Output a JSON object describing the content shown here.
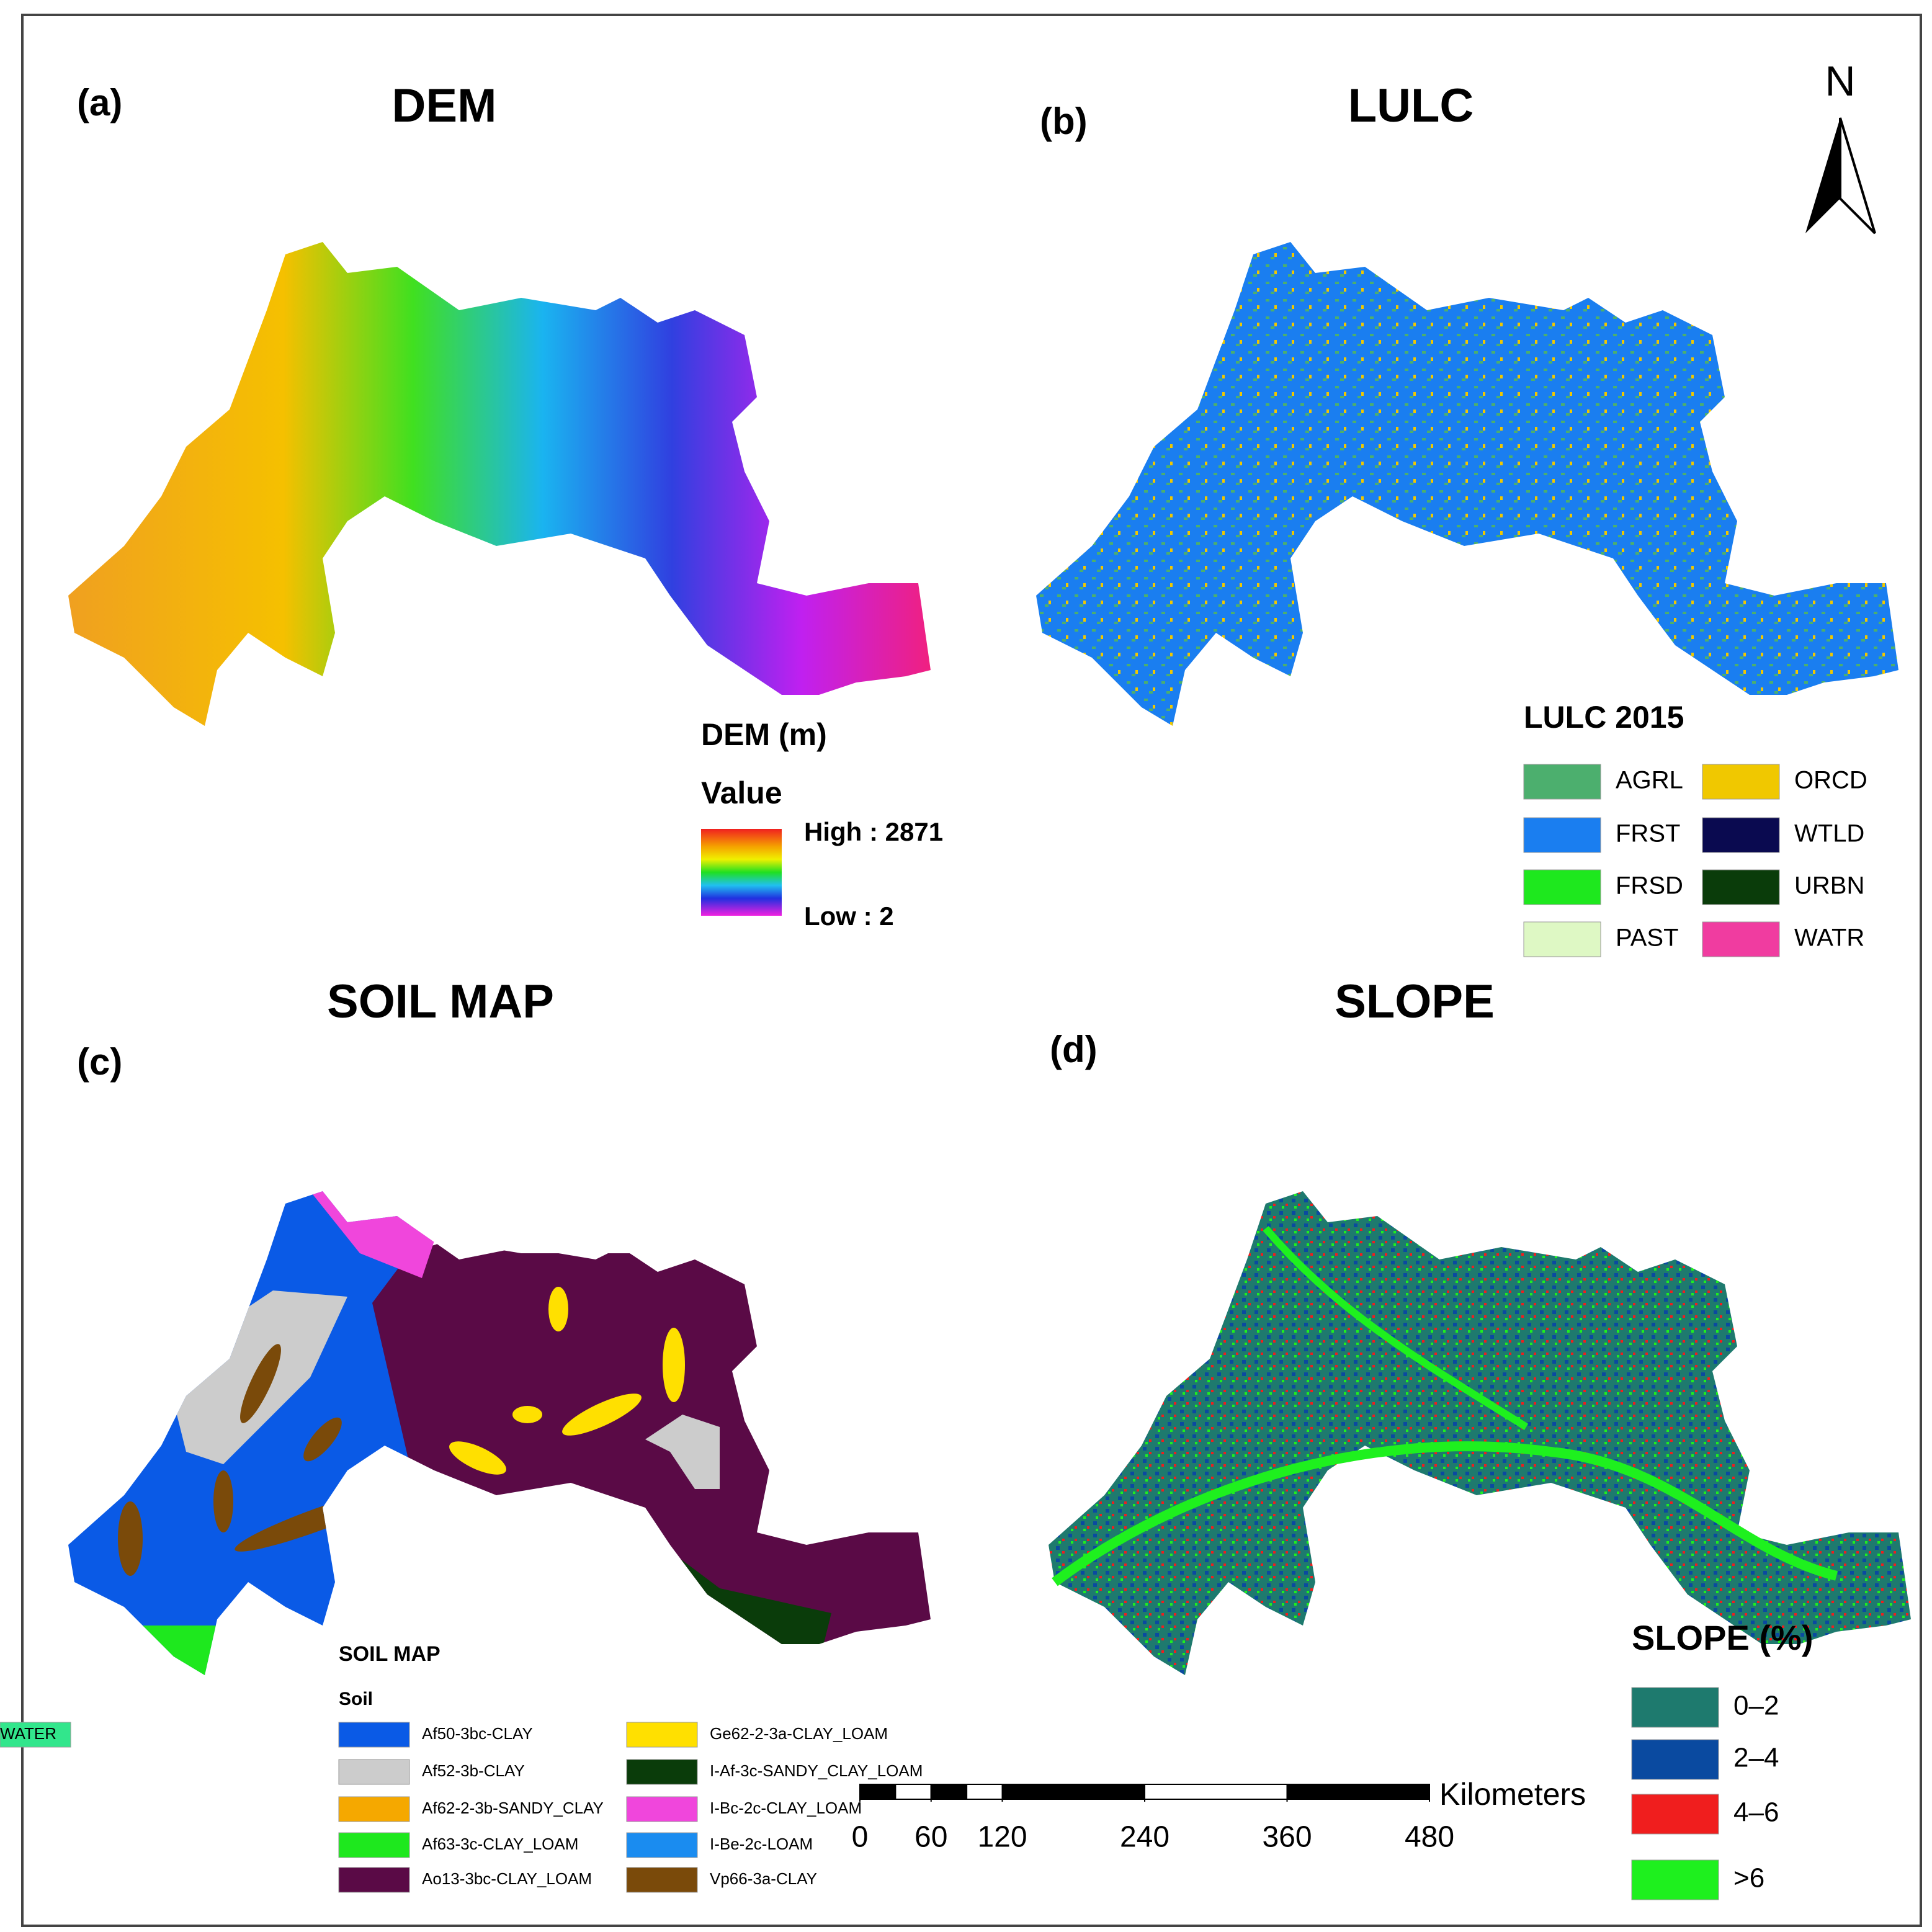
{
  "north": "N",
  "panels": [
    {
      "letter": "(a)",
      "title": "DEM"
    },
    {
      "letter": "(b)",
      "title": "LULC"
    },
    {
      "letter": "(c)",
      "title": "SOIL MAP"
    },
    {
      "letter": "(d)",
      "title": "SLOPE"
    }
  ],
  "dem_legend": {
    "title": "DEM (m)",
    "subtitle": "Value",
    "high": "High : 2871",
    "low": "Low : 2"
  },
  "lulc_legend": {
    "title": "LULC 2015",
    "items": [
      {
        "label": "AGRL",
        "color": "#4caf6e"
      },
      {
        "label": "FRST",
        "color": "#1a7ef0"
      },
      {
        "label": "FRSD",
        "color": "#1ee81e"
      },
      {
        "label": "PAST",
        "color": "#def8c4"
      },
      {
        "label": "ORCD",
        "color": "#f0c800"
      },
      {
        "label": "WTLD",
        "color": "#0a0a50"
      },
      {
        "label": "URBN",
        "color": "#0a3c0a"
      },
      {
        "label": "WATR",
        "color": "#f03ca0"
      }
    ]
  },
  "soil_legend": {
    "title": "SOIL MAP",
    "subtitle": "Soil",
    "items": [
      {
        "label": "Af50-3bc-CLAY",
        "color": "#0a5ae6"
      },
      {
        "label": "Af52-3b-CLAY",
        "color": "#cccccc"
      },
      {
        "label": "Af62-2-3b-SANDY_CLAY",
        "color": "#f5a800"
      },
      {
        "label": "Af63-3c-CLAY_LOAM",
        "color": "#1ee81e"
      },
      {
        "label": "Ao13-3bc-CLAY_LOAM",
        "color": "#5a0a46"
      },
      {
        "label": "Ge62-2-3a-CLAY_LOAM",
        "color": "#ffe000"
      },
      {
        "label": "I-Af-3c-SANDY_CLAY_LOAM",
        "color": "#0a3c0a"
      },
      {
        "label": "I-Bc-2c-CLAY_LOAM",
        "color": "#f046dc"
      },
      {
        "label": "I-Be-2c-LOAM",
        "color": "#1a8cf0"
      },
      {
        "label": "Vp66-3a-CLAY",
        "color": "#7a4a0a"
      },
      {
        "label": "WATER",
        "color": "#32e68c"
      }
    ]
  },
  "slope_legend": {
    "title": "SLOPE (%)",
    "items": [
      {
        "label": "0–2",
        "color": "#1e7a6e"
      },
      {
        "label": "2–4",
        "color": "#0a4aa0"
      },
      {
        "label": "4–6",
        "color": "#f01e1e"
      },
      {
        "label": ">6",
        "color": "#1ef01e"
      }
    ]
  },
  "scale_bar": {
    "unit": "Kilometers",
    "ticks": [
      0,
      60,
      120,
      240,
      360,
      480
    ]
  }
}
